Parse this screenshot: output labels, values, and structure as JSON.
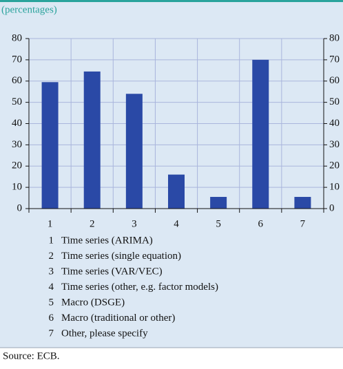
{
  "chart_data": {
    "type": "bar",
    "subtitle": "(percentages)",
    "categories": [
      "1",
      "2",
      "3",
      "4",
      "5",
      "6",
      "7"
    ],
    "values": [
      59.5,
      64.5,
      54,
      16,
      5.5,
      70,
      5.5
    ],
    "color": "#2a49a6",
    "descriptions": [
      "Time series (ARIMA)",
      "Time series (single equation)",
      "Time series (VAR/VEC)",
      "Time series (other, e.g. factor models)",
      "Macro (DSGE)",
      "Macro (traditional or other)",
      "Other, please specify"
    ],
    "ylim": [
      0,
      80
    ],
    "yticks": [
      0,
      10,
      20,
      30,
      40,
      50,
      60,
      70,
      80
    ],
    "y2lim": [
      0,
      80
    ],
    "y2ticks": [
      0,
      10,
      20,
      30,
      40,
      50,
      60,
      70,
      80
    ],
    "grid": true,
    "source": "Source: ECB."
  }
}
